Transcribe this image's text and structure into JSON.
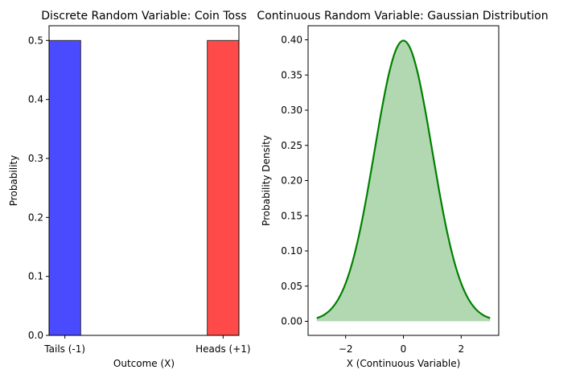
{
  "chart_data": [
    {
      "type": "bar",
      "title": "Discrete Random Variable: Coin Toss",
      "xlabel": "Outcome (X)",
      "ylabel": "Probability",
      "x": [
        -1,
        1
      ],
      "xlim": [
        -1.2,
        1.2
      ],
      "ylim": [
        0,
        0.525
      ],
      "bar_width": 0.4,
      "categories": [
        "Tails (-1)",
        "Heads (+1)"
      ],
      "values": [
        0.5,
        0.5
      ],
      "colors": [
        "#4a4aff",
        "#ff4a4a"
      ],
      "edge_color": "#333333",
      "yticks": [
        0.0,
        0.1,
        0.2,
        0.3,
        0.4,
        0.5
      ],
      "ytick_labels": [
        "0.0",
        "0.1",
        "0.2",
        "0.3",
        "0.4",
        "0.5"
      ],
      "grid": false
    },
    {
      "type": "area",
      "title": "Continuous Random Variable: Gaussian Distribution",
      "xlabel": "X (Continuous Variable)",
      "ylabel": "Probability Density",
      "xlim": [
        -3.3,
        3.3
      ],
      "ylim": [
        -0.02,
        0.42
      ],
      "series": [
        {
          "x": [
            -3.0,
            -2.75,
            -2.5,
            -2.25,
            -2.0,
            -1.75,
            -1.5,
            -1.25,
            -1.0,
            -0.75,
            -0.5,
            -0.25,
            0.0,
            0.25,
            0.5,
            0.75,
            1.0,
            1.25,
            1.5,
            1.75,
            2.0,
            2.25,
            2.5,
            2.75,
            3.0
          ],
          "y": [
            0.0044,
            0.0091,
            0.0175,
            0.0317,
            0.054,
            0.0863,
            0.1295,
            0.1826,
            0.242,
            0.3011,
            0.3521,
            0.3867,
            0.3989,
            0.3867,
            0.3521,
            0.3011,
            0.242,
            0.1826,
            0.1295,
            0.0863,
            0.054,
            0.0317,
            0.0175,
            0.0091,
            0.0044
          ],
          "line_color": "#008000",
          "fill_color": "#b2d8b2"
        }
      ],
      "xticks": [
        -2,
        0,
        2
      ],
      "xtick_labels": [
        "−2",
        "0",
        "2"
      ],
      "yticks": [
        0.0,
        0.05,
        0.1,
        0.15,
        0.2,
        0.25,
        0.3,
        0.35,
        0.4
      ],
      "ytick_labels": [
        "0.00",
        "0.05",
        "0.10",
        "0.15",
        "0.20",
        "0.25",
        "0.30",
        "0.35",
        "0.40"
      ],
      "grid": false
    }
  ]
}
